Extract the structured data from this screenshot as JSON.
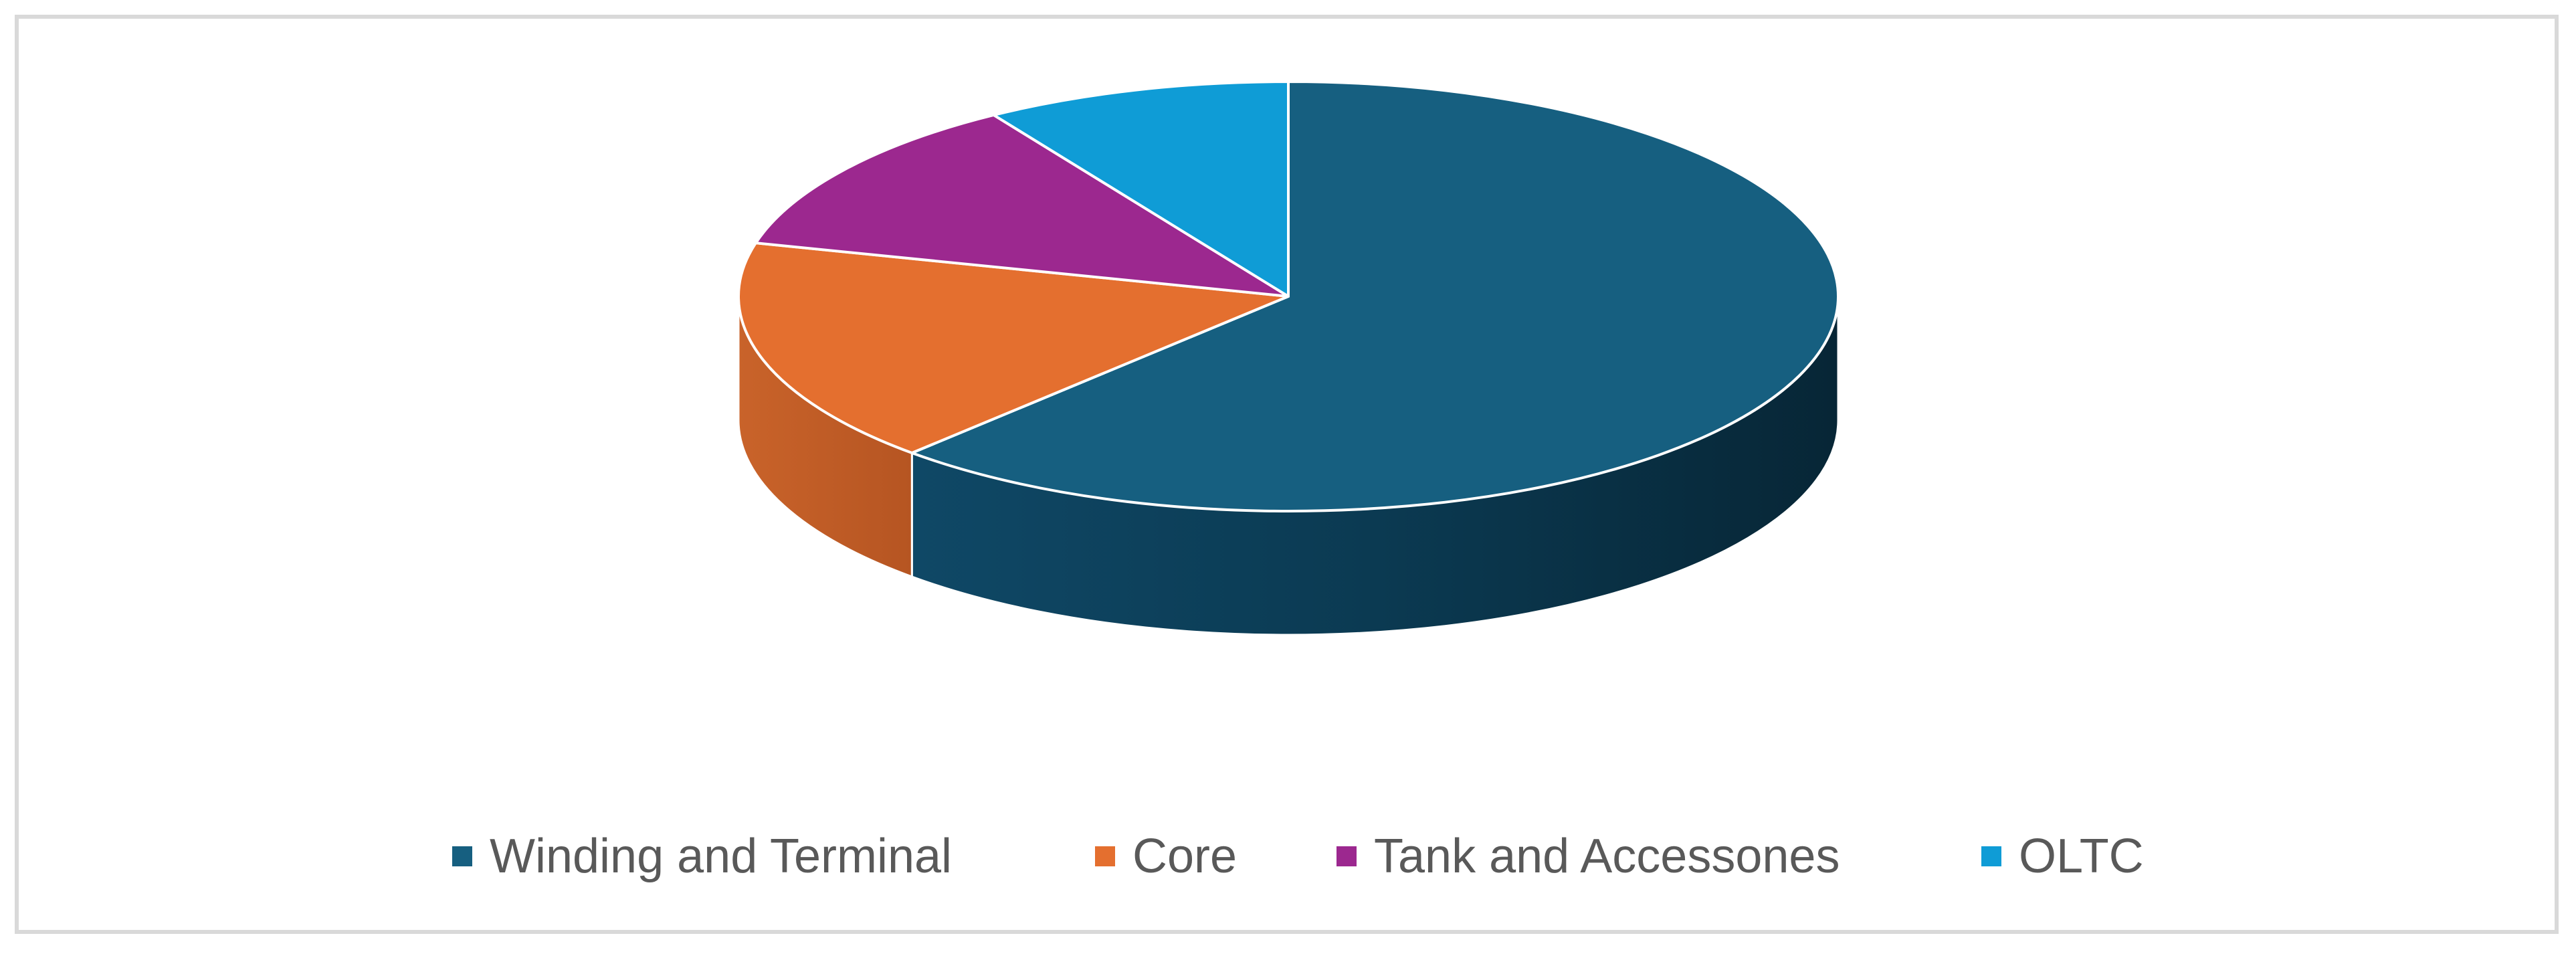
{
  "chart_data": {
    "type": "pie",
    "title": "",
    "style": "3d",
    "legend_position": "bottom",
    "slices": [
      {
        "label": "Winding and Terminal",
        "value": 62,
        "color": "#165F80"
      },
      {
        "label": "Core",
        "value": 17,
        "color": "#E46F2F"
      },
      {
        "label": "Tank and Accessones",
        "value": 12,
        "color": "#9C288F"
      },
      {
        "label": "OLTC",
        "value": 9,
        "color": "#0F9CD6"
      }
    ]
  },
  "legend": {
    "items": [
      {
        "label": "Winding and Terminal",
        "color": "#165F80"
      },
      {
        "label": "Core",
        "color": "#E46F2F"
      },
      {
        "label": "Tank and Accessones",
        "color": "#9C288F"
      },
      {
        "label": "OLTC",
        "color": "#0F9CD6"
      }
    ]
  }
}
